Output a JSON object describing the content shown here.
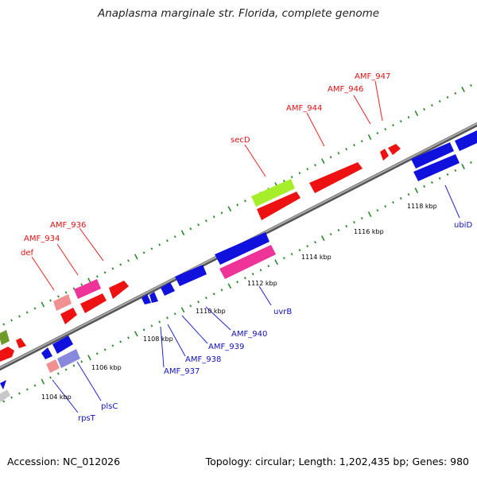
{
  "title": "Anaplasma marginale str. Florida, complete genome",
  "footer": {
    "accession": "Accession: NC_012026",
    "summary": "Topology: circular; Length: 1,202,435 bp; Genes: 980"
  },
  "colors": {
    "red_gene": "#ee1111",
    "blue_gene": "#1111dd",
    "pink_gene": "#ee3399",
    "salmon_gene": "#f09090",
    "lime_gene": "#a6ee2a",
    "lavender_gene": "#8888dd",
    "olive_gene": "#6e9a2a",
    "grey_gene": "#c8c8c8",
    "tick_green": "#2a8a2a",
    "genome_line": "#888888",
    "red_label": "#dd1111",
    "blue_label": "#1111bb"
  },
  "scale_labels": [
    "1104 kbp",
    "1106 kbp",
    "1108 kbp",
    "1110 kbp",
    "1112 kbp",
    "1114 kbp",
    "1116 kbp",
    "1118 kbp"
  ],
  "forward_labels": [
    "def",
    "AMF_934",
    "AMF_936",
    "secD",
    "AMF_944",
    "AMF_946",
    "AMF_947"
  ],
  "reverse_labels": [
    "rpsT",
    "plsC",
    "AMF_937",
    "AMF_938",
    "AMF_939",
    "AMF_940",
    "uvrB",
    "ubiD"
  ]
}
